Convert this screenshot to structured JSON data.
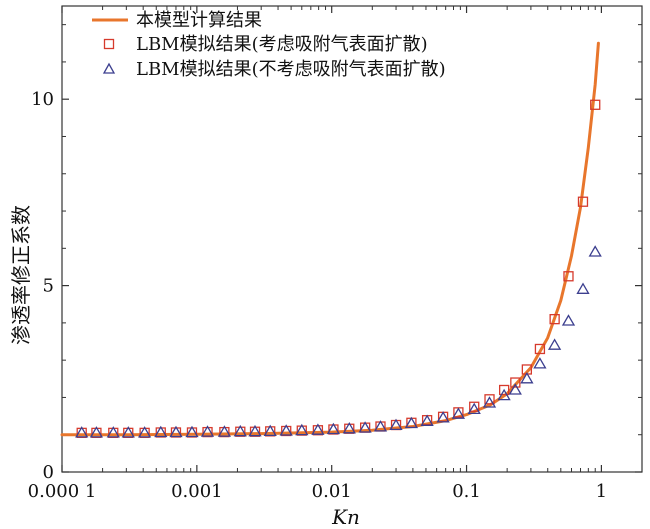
{
  "chart_data": {
    "type": "scatter",
    "xlabel": "Kn",
    "ylabel": "渗透率修正系数",
    "xscale": "log",
    "xlim": [
      0.0001,
      2
    ],
    "ylim": [
      0,
      12.5
    ],
    "xticks": [
      {
        "value": 0.0001,
        "label": "0.000 1"
      },
      {
        "value": 0.001,
        "label": "0.001"
      },
      {
        "value": 0.01,
        "label": "0.01"
      },
      {
        "value": 0.1,
        "label": "0.1"
      },
      {
        "value": 1,
        "label": "1"
      }
    ],
    "yticks": [
      {
        "value": 0,
        "label": "0"
      },
      {
        "value": 5,
        "label": "5"
      },
      {
        "value": 10,
        "label": "10"
      }
    ],
    "grid": false,
    "legend_position": "top-left",
    "series": [
      {
        "name": "本模型计算结果",
        "kind": "line",
        "color": "#e8762c",
        "x": [
          0.0001,
          0.0003,
          0.001,
          0.003,
          0.01,
          0.02,
          0.04,
          0.07,
          0.1,
          0.15,
          0.2,
          0.3,
          0.4,
          0.5,
          0.6,
          0.7,
          0.8,
          0.9,
          0.95
        ],
        "y": [
          1.0,
          1.0,
          1.01,
          1.03,
          1.07,
          1.12,
          1.22,
          1.38,
          1.54,
          1.8,
          2.1,
          2.8,
          3.6,
          4.6,
          5.8,
          7.1,
          8.7,
          10.4,
          11.5
        ]
      },
      {
        "name": "LBM模拟结果(考虑吸附气表面扩散)",
        "kind": "scatter",
        "marker": "square",
        "color": "#d63a2c",
        "x": [
          0.00014,
          0.00018,
          0.00024,
          0.00031,
          0.00041,
          0.00054,
          0.0007,
          0.00092,
          0.0012,
          0.0016,
          0.0021,
          0.0027,
          0.0035,
          0.0046,
          0.006,
          0.0079,
          0.0103,
          0.0135,
          0.0177,
          0.023,
          0.03,
          0.039,
          0.051,
          0.067,
          0.087,
          0.114,
          0.148,
          0.19,
          0.23,
          0.28,
          0.35,
          0.45,
          0.57,
          0.73,
          0.9
        ],
        "y": [
          1.05,
          1.05,
          1.05,
          1.05,
          1.05,
          1.06,
          1.06,
          1.06,
          1.07,
          1.07,
          1.08,
          1.08,
          1.09,
          1.1,
          1.11,
          1.12,
          1.14,
          1.16,
          1.19,
          1.22,
          1.26,
          1.32,
          1.39,
          1.48,
          1.6,
          1.75,
          1.95,
          2.2,
          2.4,
          2.75,
          3.3,
          4.1,
          5.25,
          7.25,
          9.85
        ]
      },
      {
        "name": "LBM模拟结果(不考虑吸附气表面扩散)",
        "kind": "scatter",
        "marker": "triangle",
        "color": "#3c3f8f",
        "x": [
          0.00014,
          0.00018,
          0.00024,
          0.00031,
          0.00041,
          0.00054,
          0.0007,
          0.00092,
          0.0012,
          0.0016,
          0.0021,
          0.0027,
          0.0035,
          0.0046,
          0.006,
          0.0079,
          0.0103,
          0.0135,
          0.0177,
          0.023,
          0.03,
          0.039,
          0.051,
          0.067,
          0.087,
          0.114,
          0.148,
          0.19,
          0.23,
          0.28,
          0.35,
          0.45,
          0.57,
          0.73,
          0.9
        ],
        "y": [
          1.05,
          1.05,
          1.05,
          1.05,
          1.05,
          1.06,
          1.06,
          1.06,
          1.07,
          1.07,
          1.08,
          1.08,
          1.09,
          1.1,
          1.11,
          1.12,
          1.14,
          1.16,
          1.18,
          1.21,
          1.25,
          1.3,
          1.36,
          1.45,
          1.55,
          1.68,
          1.85,
          2.05,
          2.2,
          2.5,
          2.9,
          3.4,
          4.05,
          4.9,
          5.9
        ]
      }
    ]
  }
}
